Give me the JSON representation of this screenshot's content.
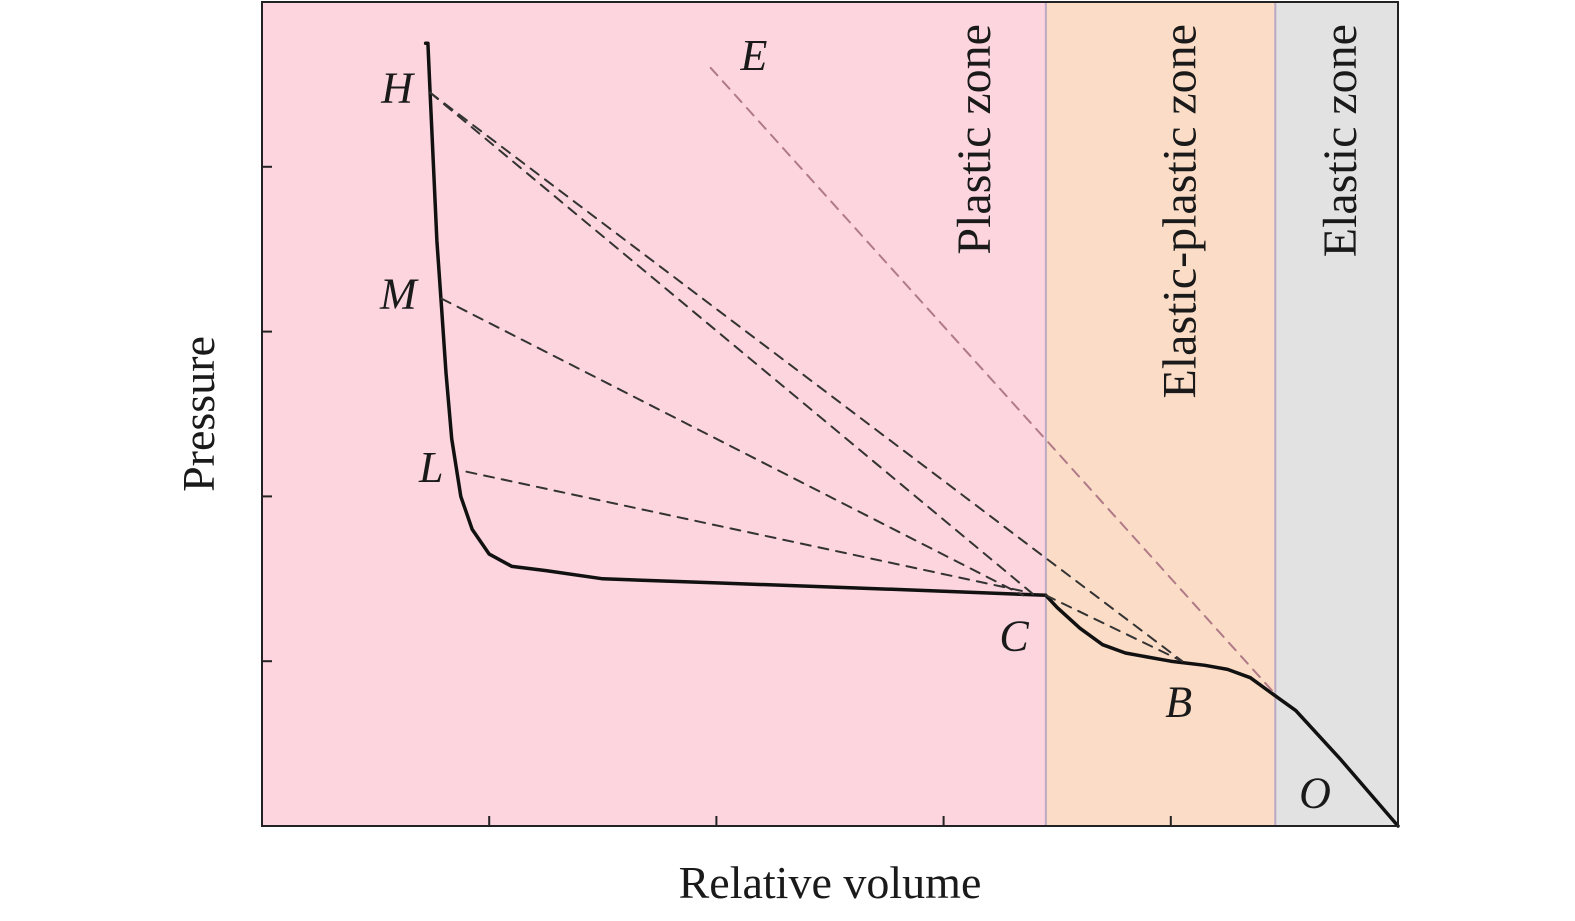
{
  "chart_data": {
    "type": "line",
    "title": "",
    "xlabel": "Relative volume",
    "ylabel": "Pressure",
    "xlim": [
      0,
      1
    ],
    "ylim": [
      0,
      1
    ],
    "xticks": [
      0.2,
      0.4,
      0.6,
      0.8
    ],
    "yticks": [
      0.2,
      0.4,
      0.6,
      0.8
    ],
    "tick_labels_shown": false,
    "grid": false,
    "zones": [
      {
        "label": "Plastic zone",
        "x_range": [
          0,
          0.69
        ],
        "color": "#fcd5de",
        "label_color": "#1a1a1a"
      },
      {
        "label": "Elastic-plastic zone",
        "x_range": [
          0.69,
          0.892
        ],
        "color": "#fbdcc6",
        "label_color": "#1a1a1a"
      },
      {
        "label": "Elastic zone",
        "x_range": [
          0.892,
          1.0
        ],
        "color": "#e2e2e2",
        "label_color": "#1a1a1a"
      }
    ],
    "series": [
      {
        "role": "curve",
        "color": "#111111",
        "x": [
          1.0,
          0.95,
          0.91,
          0.89,
          0.87,
          0.85,
          0.83,
          0.8,
          0.78,
          0.76,
          0.74,
          0.72,
          0.7,
          0.69,
          0.6,
          0.5,
          0.4,
          0.3,
          0.25,
          0.22,
          0.2,
          0.185,
          0.175,
          0.167,
          0.162,
          0.158,
          0.154,
          0.151,
          0.148,
          0.146,
          0.144
        ],
        "y": [
          0.0,
          0.08,
          0.14,
          0.16,
          0.18,
          0.19,
          0.195,
          0.2,
          0.205,
          0.21,
          0.22,
          0.24,
          0.265,
          0.28,
          0.285,
          0.29,
          0.295,
          0.3,
          0.31,
          0.315,
          0.33,
          0.36,
          0.4,
          0.47,
          0.55,
          0.63,
          0.71,
          0.8,
          0.89,
          0.95,
          0.95
        ]
      },
      {
        "role": "dashed",
        "color": "#333333",
        "x": [
          0.148,
          0.68
        ],
        "y": [
          0.89,
          0.28
        ]
      },
      {
        "role": "dashed",
        "color": "#333333",
        "x": [
          0.158,
          0.67
        ],
        "y": [
          0.64,
          0.28
        ]
      },
      {
        "role": "dashed",
        "color": "#333333",
        "x": [
          0.18,
          0.67
        ],
        "y": [
          0.43,
          0.285
        ]
      },
      {
        "role": "dashed",
        "color": "#333333",
        "x": [
          0.148,
          0.81
        ],
        "y": [
          0.89,
          0.2
        ]
      },
      {
        "role": "dashed",
        "color": "#333333",
        "x": [
          0.69,
          0.81
        ],
        "y": [
          0.28,
          0.2
        ]
      },
      {
        "role": "dashed",
        "color": "#b07a88",
        "x": [
          0.395,
          0.892
        ],
        "y": [
          0.92,
          0.16
        ]
      }
    ],
    "annotations": [
      {
        "text": "H",
        "x": 0.119,
        "y": 0.89
      },
      {
        "text": "M",
        "x": 0.12,
        "y": 0.64
      },
      {
        "text": "L",
        "x": 0.149,
        "y": 0.43
      },
      {
        "text": "E",
        "x": 0.433,
        "y": 0.93
      },
      {
        "text": "C",
        "x": 0.662,
        "y": 0.225
      },
      {
        "text": "B",
        "x": 0.807,
        "y": 0.145
      },
      {
        "text": "O",
        "x": 0.927,
        "y": 0.035
      }
    ]
  }
}
